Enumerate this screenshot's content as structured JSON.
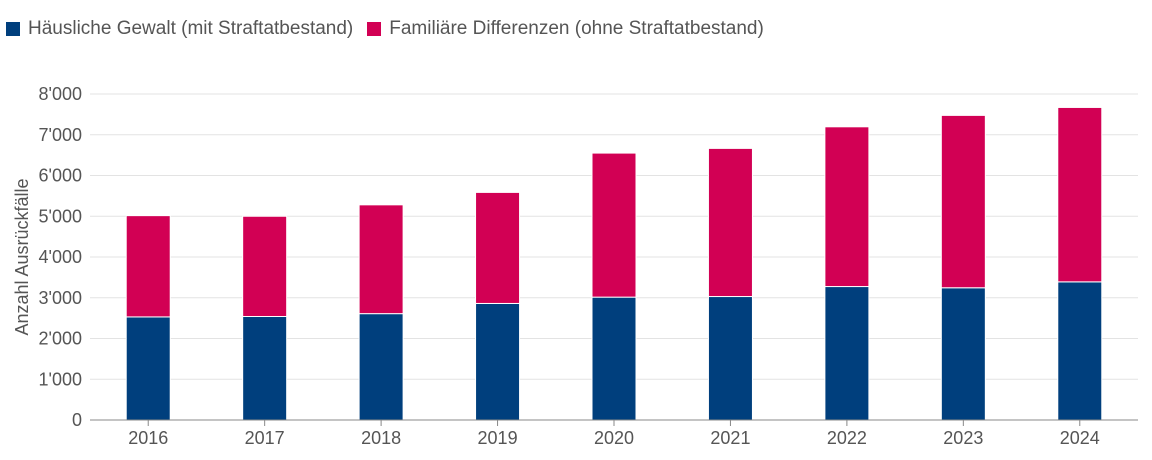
{
  "chart_data": {
    "type": "bar",
    "stacked": true,
    "categories": [
      "2016",
      "2017",
      "2018",
      "2019",
      "2020",
      "2021",
      "2022",
      "2023",
      "2024"
    ],
    "series": [
      {
        "name": "Häusliche Gewalt (mit Straftatbestand)",
        "color": "#003F7D",
        "values": [
          2530,
          2540,
          2610,
          2860,
          3015,
          3030,
          3275,
          3245,
          3390
        ]
      },
      {
        "name": "Familiäre Differenzen (ohne Straftatbestand)",
        "color": "#D20054",
        "values": [
          2485,
          2460,
          2670,
          2725,
          3535,
          3635,
          3920,
          4230,
          4280
        ]
      }
    ],
    "title": "",
    "xlabel": "",
    "ylabel": "Anzahl Ausrückfälle",
    "ylim": [
      0,
      8000
    ],
    "yticks": [
      "0",
      "1'000",
      "2'000",
      "3'000",
      "4'000",
      "5'000",
      "6'000",
      "7'000",
      "8'000"
    ],
    "grid": true,
    "legend_position": "top-left"
  }
}
